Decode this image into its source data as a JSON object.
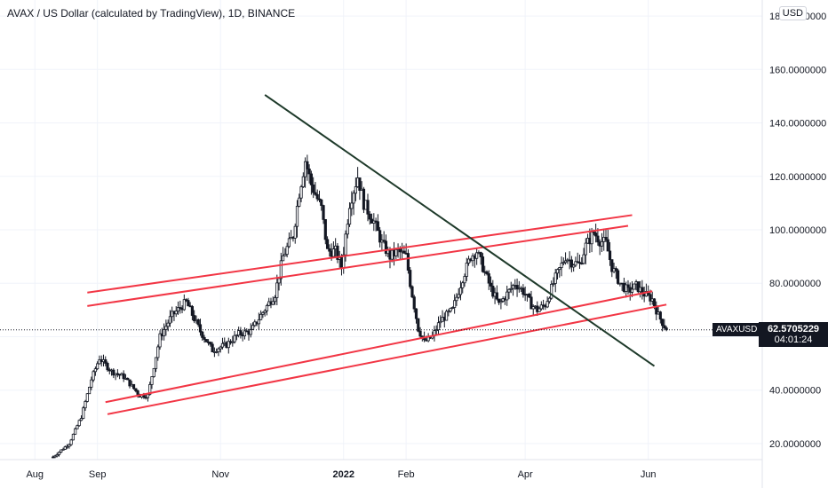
{
  "header": {
    "title": "AVAX / US Dollar (calculated by TradingView), 1D, BINANCE",
    "unit_badge": "USD"
  },
  "price_tag": {
    "symbol": "AVAXUSD",
    "price": "62.5705229",
    "countdown": "04:01:24",
    "price_value": 62.5705229,
    "color": "#131722"
  },
  "colors": {
    "up": "#131722",
    "down": "#131722",
    "channel": "#f23645",
    "trendline": "#1e3a2a",
    "grid": "#f0f3fa"
  },
  "chart_data": {
    "type": "candlestick",
    "title": "AVAX / US Dollar (calculated by TradingView), 1D, BINANCE",
    "ylabel": "USD",
    "ylim": [
      14,
      186
    ],
    "y_ticks": [
      20,
      40,
      60,
      80,
      100,
      120,
      140,
      160,
      180
    ],
    "y_tick_labels": [
      "20.0000000",
      "40.0000000",
      "60.0000000",
      "80.0000000",
      "100.0000000",
      "120.0000000",
      "140.0000000",
      "160.0000000",
      "180.0000000"
    ],
    "x_ticks": [
      {
        "label": "Aug",
        "date": "2021-08-01"
      },
      {
        "label": "Sep",
        "date": "2021-09-01"
      },
      {
        "label": "Nov",
        "date": "2021-11-01"
      },
      {
        "label": "2022",
        "date": "2022-01-01",
        "bold": true
      },
      {
        "label": "Feb",
        "date": "2022-02-01"
      },
      {
        "label": "Apr",
        "date": "2022-04-01"
      },
      {
        "label": "Jun",
        "date": "2022-06-01"
      }
    ],
    "xlim": [
      "2021-07-20",
      "2022-06-25"
    ],
    "grid": true,
    "price_keypoints": [
      [
        "2021-08-10",
        15
      ],
      [
        "2021-08-18",
        20
      ],
      [
        "2021-08-24",
        30
      ],
      [
        "2021-08-29",
        44
      ],
      [
        "2021-09-02",
        52
      ],
      [
        "2021-09-08",
        47
      ],
      [
        "2021-09-14",
        45
      ],
      [
        "2021-09-22",
        38
      ],
      [
        "2021-09-26",
        38
      ],
      [
        "2021-10-02",
        60
      ],
      [
        "2021-10-08",
        68
      ],
      [
        "2021-10-15",
        73
      ],
      [
        "2021-10-22",
        62
      ],
      [
        "2021-10-28",
        55
      ],
      [
        "2021-11-04",
        57
      ],
      [
        "2021-11-10",
        61
      ],
      [
        "2021-11-16",
        62
      ],
      [
        "2021-11-21",
        68
      ],
      [
        "2021-11-28",
        76
      ],
      [
        "2021-12-02",
        90
      ],
      [
        "2021-12-07",
        98
      ],
      [
        "2021-12-10",
        114
      ],
      [
        "2021-12-13",
        126
      ],
      [
        "2021-12-16",
        117
      ],
      [
        "2021-12-21",
        108
      ],
      [
        "2021-12-24",
        92
      ],
      [
        "2021-12-28",
        92
      ],
      [
        "2021-12-31",
        86
      ],
      [
        "2022-01-04",
        110
      ],
      [
        "2022-01-08",
        120
      ],
      [
        "2022-01-11",
        110
      ],
      [
        "2022-01-16",
        103
      ],
      [
        "2022-01-20",
        95
      ],
      [
        "2022-01-24",
        90
      ],
      [
        "2022-01-28",
        92
      ],
      [
        "2022-02-01",
        90
      ],
      [
        "2022-02-03",
        80
      ],
      [
        "2022-02-07",
        63
      ],
      [
        "2022-02-10",
        58
      ],
      [
        "2022-02-14",
        60
      ],
      [
        "2022-02-18",
        66
      ],
      [
        "2022-02-24",
        70
      ],
      [
        "2022-03-01",
        82
      ],
      [
        "2022-03-05",
        90
      ],
      [
        "2022-03-08",
        92
      ],
      [
        "2022-03-11",
        86
      ],
      [
        "2022-03-15",
        78
      ],
      [
        "2022-03-19",
        72
      ],
      [
        "2022-03-23",
        76
      ],
      [
        "2022-03-27",
        80
      ],
      [
        "2022-03-31",
        77
      ],
      [
        "2022-04-04",
        72
      ],
      [
        "2022-04-07",
        70
      ],
      [
        "2022-04-11",
        72
      ],
      [
        "2022-04-16",
        82
      ],
      [
        "2022-04-21",
        90
      ],
      [
        "2022-04-24",
        88
      ],
      [
        "2022-04-28",
        87
      ],
      [
        "2022-05-01",
        94
      ],
      [
        "2022-05-05",
        99
      ],
      [
        "2022-05-08",
        96
      ],
      [
        "2022-05-11",
        95
      ],
      [
        "2022-05-14",
        86
      ],
      [
        "2022-05-18",
        80
      ],
      [
        "2022-05-22",
        77
      ],
      [
        "2022-05-26",
        79
      ],
      [
        "2022-05-30",
        76
      ],
      [
        "2022-06-03",
        74
      ],
      [
        "2022-06-06",
        68
      ],
      [
        "2022-06-09",
        64
      ],
      [
        "2022-06-10",
        62.57
      ]
    ],
    "drawings": [
      {
        "name": "channel-upper-a",
        "color": "#f23645",
        "from": [
          "2021-08-27",
          76.5
        ],
        "to": [
          "2022-05-24",
          105.5
        ]
      },
      {
        "name": "channel-upper-b",
        "color": "#f23645",
        "from": [
          "2021-08-27",
          71.5
        ],
        "to": [
          "2022-05-22",
          101.5
        ]
      },
      {
        "name": "channel-lower-a",
        "color": "#f23645",
        "from": [
          "2021-09-05",
          35.5
        ],
        "to": [
          "2022-06-03",
          77
        ]
      },
      {
        "name": "channel-lower-b",
        "color": "#f23645",
        "from": [
          "2021-09-06",
          31
        ],
        "to": [
          "2022-06-10",
          72
        ]
      },
      {
        "name": "trendline-downtrend",
        "color": "#1e3a2a",
        "from": [
          "2021-11-23",
          150.5
        ],
        "to": [
          "2022-06-04",
          49
        ]
      }
    ]
  }
}
